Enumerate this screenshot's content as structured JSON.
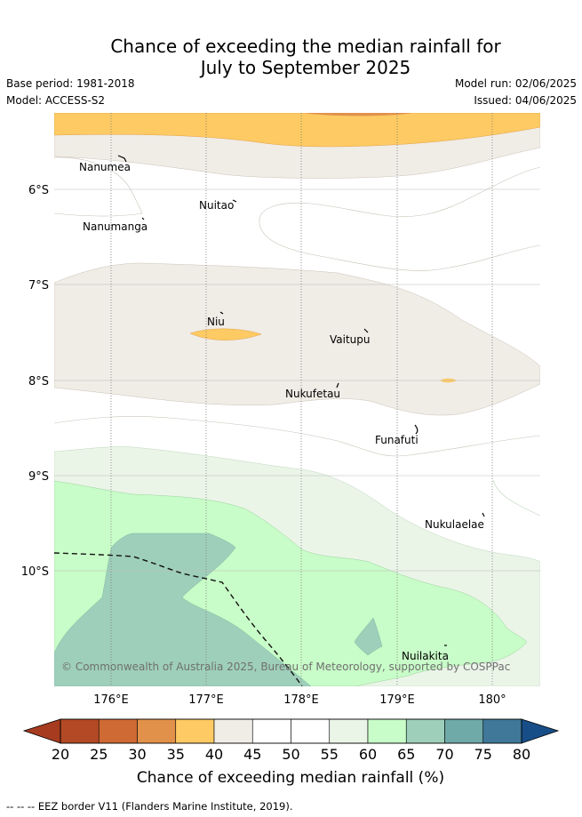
{
  "title_line1": "Chance of exceeding the median rainfall for",
  "title_line2": "July to September 2025",
  "base_period": "Base period: 1981-2018",
  "model": "Model: ACCESS-S2",
  "model_run": "Model run: 02/06/2025",
  "issued": "Issued: 04/06/2025",
  "lat_labels": [
    "6°S",
    "7°S",
    "8°S",
    "9°S",
    "10°S"
  ],
  "lon_labels": [
    "176°E",
    "177°E",
    "178°E",
    "179°E",
    "180°"
  ],
  "places": [
    "Nanumea",
    "Nuitao",
    "Nanumanga",
    "Niu",
    "Vaitupu",
    "Nukufetau",
    "Funafuti",
    "Nukulaelae",
    "Nuilakita"
  ],
  "copyright": "© Commonwealth of Australia 2025, Bureau of Meteorology, supported by COSPPac",
  "legend": {
    "ticks": [
      "20",
      "25",
      "30",
      "35",
      "40",
      "45",
      "50",
      "55",
      "60",
      "65",
      "70",
      "75",
      "80"
    ],
    "colors": [
      "#b34a25",
      "#cf6a35",
      "#e2914a",
      "#fdca63",
      "#f0ece6",
      "#ffffff",
      "#ffffff",
      "#eaf5e8",
      "#c8fcc8",
      "#9ecfba",
      "#6fa9a8",
      "#3f7899"
    ],
    "low_color": "#a63b20",
    "high_color": "#184e88",
    "label": "Chance of exceeding median rainfall (%)"
  },
  "footnote": "-- -- -- EEZ border V11 (Flanders Marine Institute, 2019)."
}
